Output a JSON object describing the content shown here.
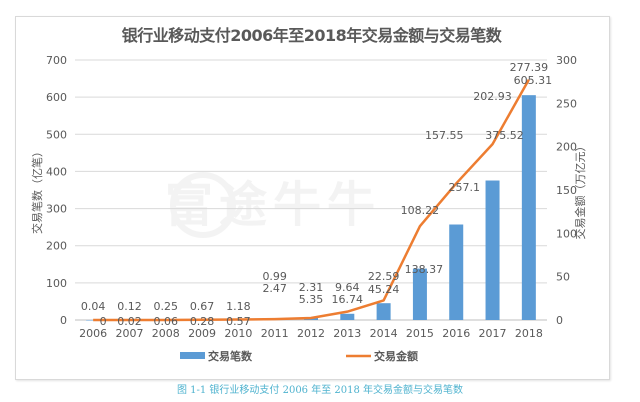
{
  "chart_data": {
    "type": "bar+line",
    "title": "银行业移动支付2006年至2018年交易金额与交易笔数",
    "categories": [
      "2006",
      "2007",
      "2008",
      "2009",
      "2010",
      "2011",
      "2012",
      "2013",
      "2014",
      "2015",
      "2016",
      "2017",
      "2018"
    ],
    "series": [
      {
        "name": "交易笔数",
        "type": "bar",
        "axis": "left",
        "color": "#5b9bd5",
        "values": [
          0.04,
          0.12,
          0.25,
          0.67,
          1.18,
          2.47,
          5.35,
          16.74,
          45.24,
          138.37,
          257.1,
          375.52,
          605.31
        ]
      },
      {
        "name": "交易金额",
        "type": "line",
        "axis": "right",
        "color": "#ed7d31",
        "values": [
          0,
          0.02,
          0.06,
          0.28,
          0.57,
          0.99,
          2.31,
          9.64,
          22.59,
          108.22,
          157.55,
          202.93,
          277.39
        ]
      }
    ],
    "ylabel": "交易笔数（亿笔）",
    "y2label": "交易金额（万亿元）",
    "ylim": [
      0,
      700
    ],
    "y2lim": [
      0,
      300
    ],
    "yticks": [
      0,
      100,
      200,
      300,
      400,
      500,
      600,
      700
    ],
    "y2ticks": [
      0,
      50,
      100,
      150,
      200,
      250,
      300
    ],
    "grid": true,
    "legend_position": "bottom"
  },
  "legend": {
    "bar_label": "交易笔数",
    "line_label": "交易金额"
  },
  "caption": "图 1-1  银行业移动支付 2006 年至 2018 年交易金额与交易笔数",
  "watermark": "富途牛牛"
}
